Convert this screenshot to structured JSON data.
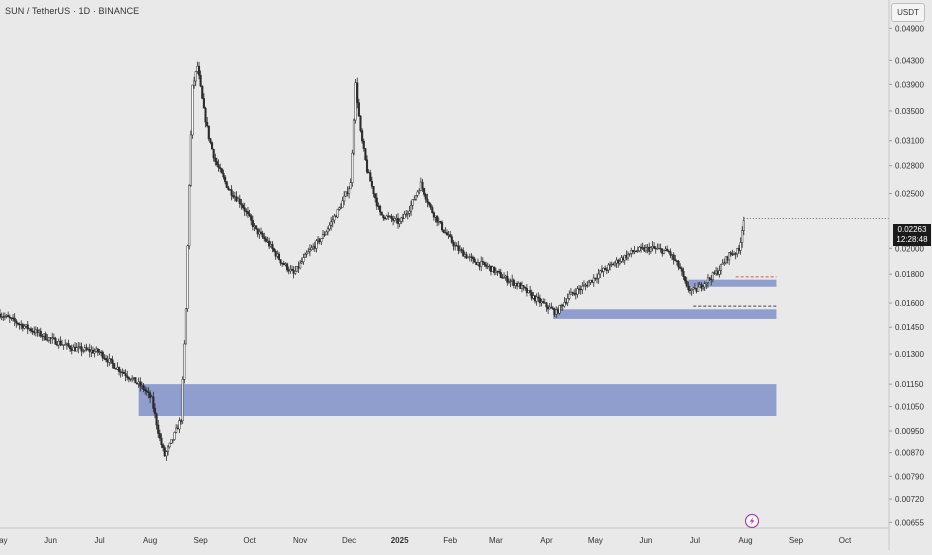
{
  "header": {
    "symbol_title": "SUN / TetherUS · 1D · BINANCE",
    "currency_button": "USDT"
  },
  "last_price": {
    "value": "0.02263",
    "countdown": "12:28:48",
    "color": "#1a1a1a"
  },
  "colors": {
    "background": "#e9e9ea",
    "candle": "#2b2b2b",
    "zone_fill": "#8a9acb",
    "dashed_red": "#d9534f",
    "dashed_dark": "#444444",
    "bolt_icon": "#b23caa"
  },
  "icons": [
    "lightning-bolt-icon"
  ],
  "chart_data": {
    "type": "candlestick",
    "title": "SUN / TetherUS · 1D · BINANCE",
    "y_scale": "log",
    "ylim": [
      0.0064,
      0.055
    ],
    "y_ticks": [
      "0.04900",
      "0.04300",
      "0.03900",
      "0.03500",
      "0.03100",
      "0.02800",
      "0.02500",
      "0.02000",
      "0.01800",
      "0.01600",
      "0.01450",
      "0.01300",
      "0.01150",
      "0.01050",
      "0.00950",
      "0.00870",
      "0.00790",
      "0.00720",
      "0.00655"
    ],
    "x_tick_labels": [
      "May",
      "Jun",
      "Jul",
      "Aug",
      "Sep",
      "Oct",
      "Nov",
      "Dec",
      "2025",
      "Feb",
      "Mar",
      "Apr",
      "May",
      "Jun",
      "Jul",
      "Aug",
      "Sep",
      "Oct"
    ],
    "x_range": [
      "2024-05-01",
      "2025-10-28"
    ],
    "grid": false,
    "price_path": [
      [
        "2024-05-01",
        0.0153
      ],
      [
        "2024-05-15",
        0.0146
      ],
      [
        "2024-06-01",
        0.0138
      ],
      [
        "2024-06-15",
        0.0133
      ],
      [
        "2024-07-01",
        0.0131
      ],
      [
        "2024-07-10",
        0.0124
      ],
      [
        "2024-07-20",
        0.0118
      ],
      [
        "2024-07-28",
        0.0113
      ],
      [
        "2024-08-02",
        0.0108
      ],
      [
        "2024-08-07",
        0.0092
      ],
      [
        "2024-08-10",
        0.0086
      ],
      [
        "2024-08-15",
        0.0092
      ],
      [
        "2024-08-20",
        0.01
      ],
      [
        "2024-08-23",
        0.0156
      ],
      [
        "2024-08-25",
        0.026
      ],
      [
        "2024-08-27",
        0.0385
      ],
      [
        "2024-08-30",
        0.042
      ],
      [
        "2024-09-03",
        0.035
      ],
      [
        "2024-09-06",
        0.0315
      ],
      [
        "2024-09-10",
        0.0285
      ],
      [
        "2024-09-18",
        0.0255
      ],
      [
        "2024-09-26",
        0.024
      ],
      [
        "2024-10-05",
        0.0215
      ],
      [
        "2024-10-12",
        0.0205
      ],
      [
        "2024-10-20",
        0.019
      ],
      [
        "2024-10-28",
        0.018
      ],
      [
        "2024-11-05",
        0.0195
      ],
      [
        "2024-11-15",
        0.021
      ],
      [
        "2024-11-25",
        0.0235
      ],
      [
        "2024-12-02",
        0.026
      ],
      [
        "2024-12-05",
        0.039
      ],
      [
        "2024-12-08",
        0.032
      ],
      [
        "2024-12-12",
        0.0275
      ],
      [
        "2024-12-20",
        0.023
      ],
      [
        "2025-01-01",
        0.0222
      ],
      [
        "2025-01-08",
        0.0238
      ],
      [
        "2025-01-14",
        0.026
      ],
      [
        "2025-01-20",
        0.0235
      ],
      [
        "2025-01-28",
        0.0215
      ],
      [
        "2025-02-05",
        0.02
      ],
      [
        "2025-02-15",
        0.019
      ],
      [
        "2025-02-25",
        0.0185
      ],
      [
        "2025-03-05",
        0.0178
      ],
      [
        "2025-03-15",
        0.0172
      ],
      [
        "2025-03-25",
        0.0163
      ],
      [
        "2025-04-01",
        0.0158
      ],
      [
        "2025-04-07",
        0.0154
      ],
      [
        "2025-04-15",
        0.0165
      ],
      [
        "2025-04-25",
        0.0172
      ],
      [
        "2025-05-05",
        0.0182
      ],
      [
        "2025-05-15",
        0.019
      ],
      [
        "2025-05-25",
        0.0198
      ],
      [
        "2025-06-05",
        0.02
      ],
      [
        "2025-06-15",
        0.0197
      ],
      [
        "2025-06-22",
        0.0184
      ],
      [
        "2025-06-26",
        0.017
      ],
      [
        "2025-07-01",
        0.0168
      ],
      [
        "2025-07-08",
        0.0175
      ],
      [
        "2025-07-15",
        0.0182
      ],
      [
        "2025-07-22",
        0.0195
      ],
      [
        "2025-07-28",
        0.0198
      ],
      [
        "2025-07-31",
        0.0226
      ]
    ],
    "zones": [
      {
        "from": "2024-07-25",
        "to": "2025-08-20",
        "low": 0.0101,
        "high": 0.0115
      },
      {
        "from": "2025-04-05",
        "to": "2025-08-20",
        "low": 0.015,
        "high": 0.0156
      },
      {
        "from": "2025-06-27",
        "to": "2025-08-20",
        "low": 0.0171,
        "high": 0.0176
      }
    ],
    "dashed_levels": [
      {
        "from": "2025-07-26",
        "to": "2025-08-20",
        "value": 0.0178,
        "color": "red"
      },
      {
        "from": "2025-06-30",
        "to": "2025-08-20",
        "value": 0.0158,
        "color": "dark"
      }
    ]
  }
}
